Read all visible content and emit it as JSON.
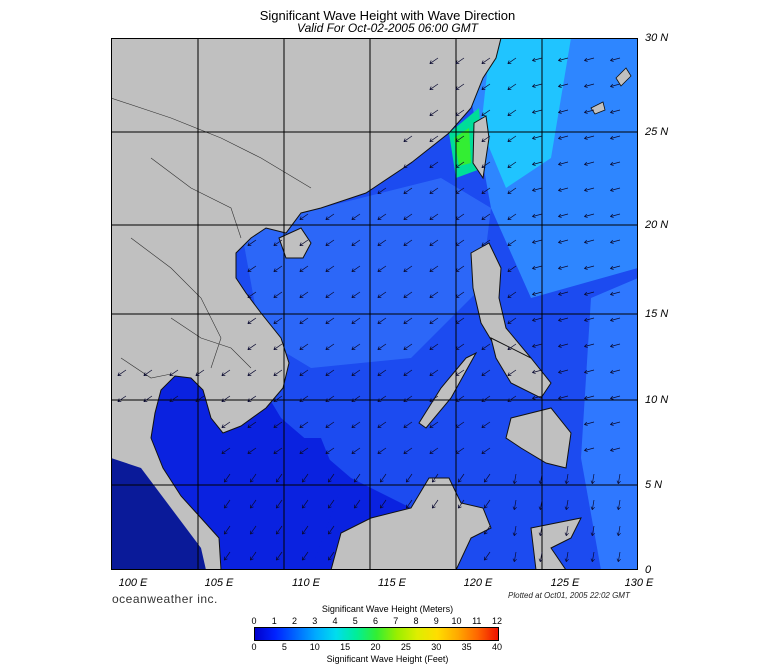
{
  "title": "Significant Wave Height with Wave Direction",
  "subtitle": "Valid For Oct-02-2005 06:00 GMT",
  "lat_labels": [
    "30 N",
    "25 N",
    "20 N",
    "15 N",
    "10 N",
    "5 N",
    "0"
  ],
  "lon_labels": [
    "100 E",
    "105 E",
    "110 E",
    "115 E",
    "120 E",
    "125 E",
    "130 E"
  ],
  "brand": "oceanweather inc.",
  "plotted": "Plotted at Oct01, 2005 22:02 GMT",
  "colorbar": {
    "meters_title": "Significant Wave Height (Meters)",
    "feet_title": "Significant Wave Height (Feet)",
    "meters_ticks": [
      "0",
      "1",
      "2",
      "3",
      "4",
      "5",
      "6",
      "7",
      "8",
      "9",
      "10",
      "11",
      "12"
    ],
    "feet_ticks": [
      "0",
      "5",
      "10",
      "15",
      "20",
      "25",
      "30",
      "35",
      "40"
    ],
    "colors": [
      "#0000cc",
      "#0022ff",
      "#0066ff",
      "#00aaff",
      "#00ddee",
      "#00ee99",
      "#33ee33",
      "#99ee00",
      "#ddee00",
      "#ffdd00",
      "#ffaa00",
      "#ff6600",
      "#ee1100"
    ]
  },
  "colors": {
    "land": "#c0c0c0",
    "sea_deep": "#0a22e0",
    "sea_mid": "#1c4bf0",
    "sea_light": "#2f78ff",
    "coast": "#111111"
  }
}
